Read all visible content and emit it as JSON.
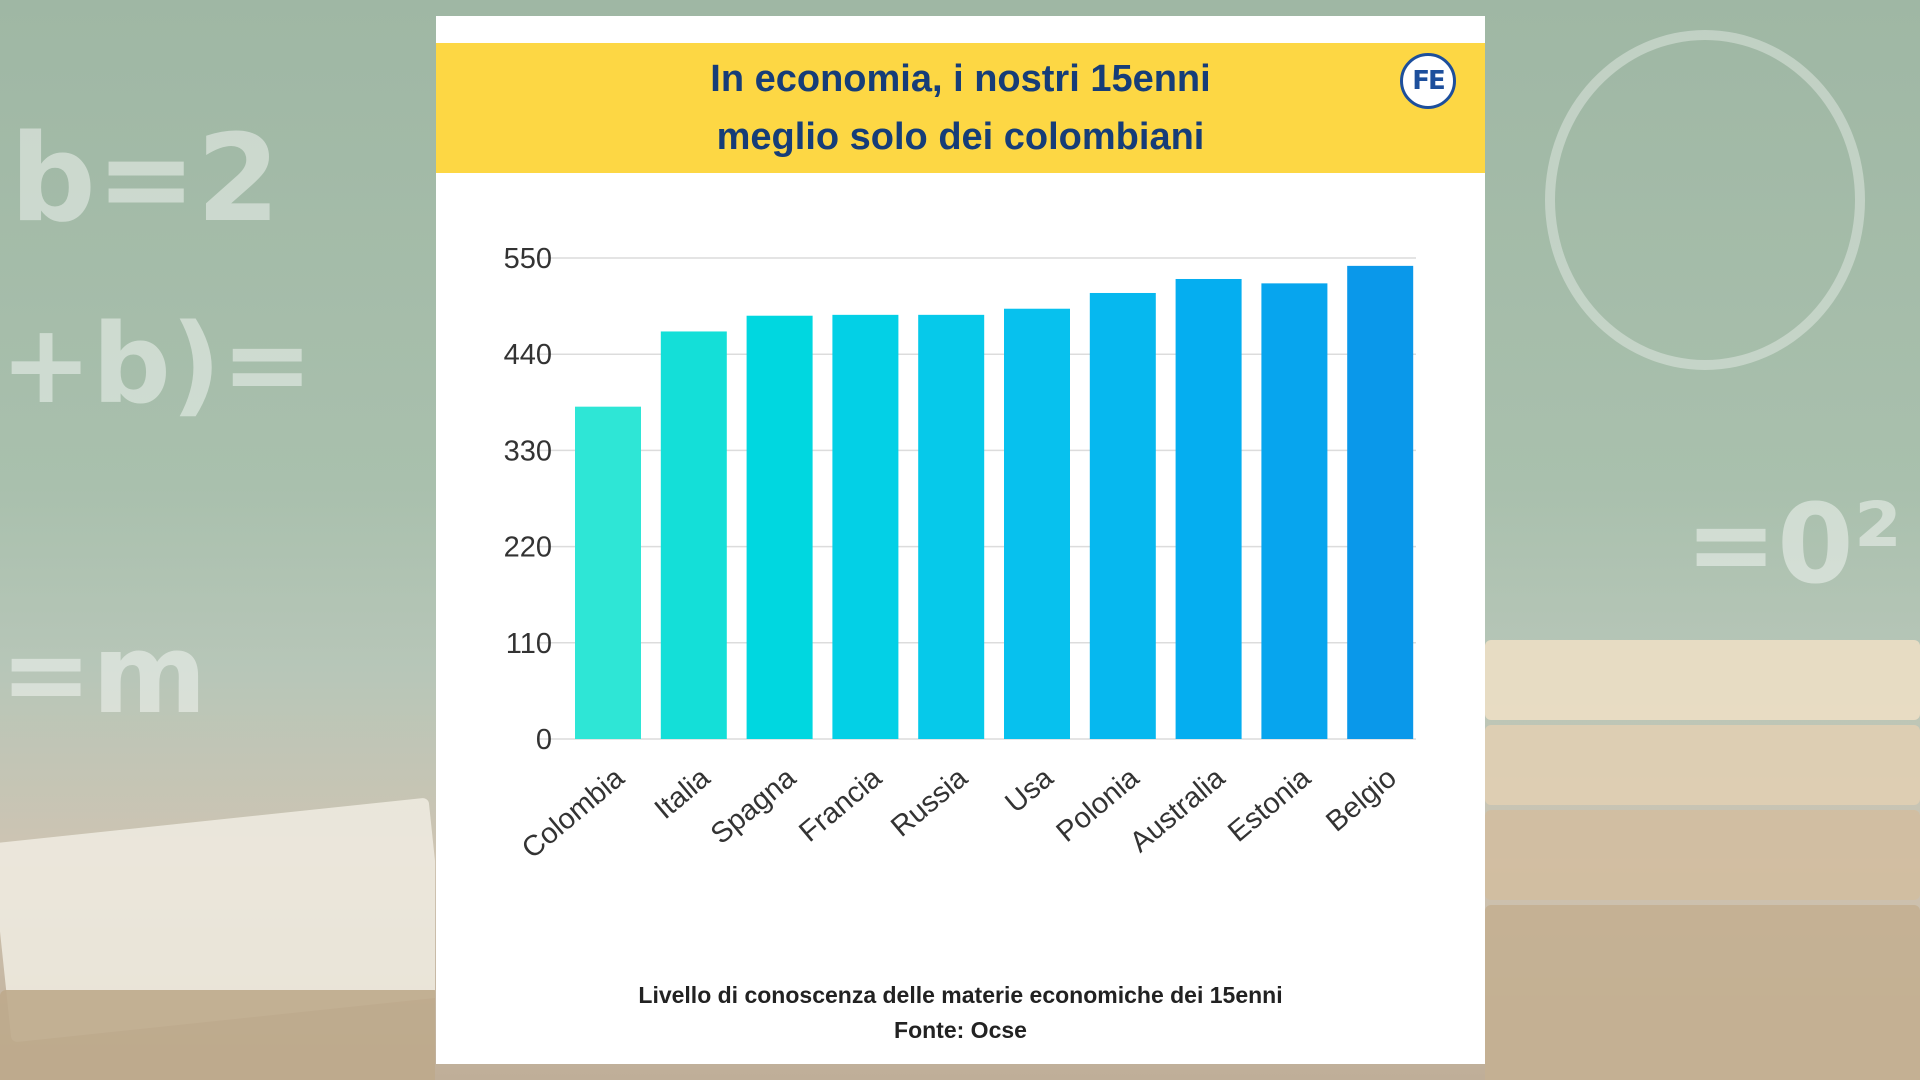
{
  "header": {
    "title_line1": "In economia, i nostri 15enni",
    "title_line2": "meglio solo dei colombiani",
    "logo_text": "FE"
  },
  "chart_data": {
    "type": "bar",
    "title": "In economia, i nostri 15enni meglio solo dei colombiani",
    "categories": [
      "Colombia",
      "Italia",
      "Spagna",
      "Francia",
      "Russia",
      "Usa",
      "Polonia",
      "Australia",
      "Estonia",
      "Belgio"
    ],
    "values": [
      380,
      466,
      484,
      485,
      485,
      492,
      510,
      526,
      521,
      541
    ],
    "yticks": [
      0,
      110,
      220,
      330,
      440,
      550
    ],
    "ylim": [
      0,
      550
    ],
    "xlabel": "",
    "ylabel": "",
    "grid": true,
    "legend": "none",
    "colors": [
      "#2ee6d6",
      "#14dfd8",
      "#00d7e0",
      "#03d0e6",
      "#06c9ea",
      "#07c1ee",
      "#06b8ef",
      "#05aef0",
      "#07a5ee",
      "#0a98ea"
    ]
  },
  "footer": {
    "caption": "Livello di conoscenza delle materie economiche dei 15enni",
    "source": "Fonte: Ocse"
  },
  "colors": {
    "banner": "#fdd744",
    "title_text": "#163d78",
    "card": "#ffffff"
  }
}
